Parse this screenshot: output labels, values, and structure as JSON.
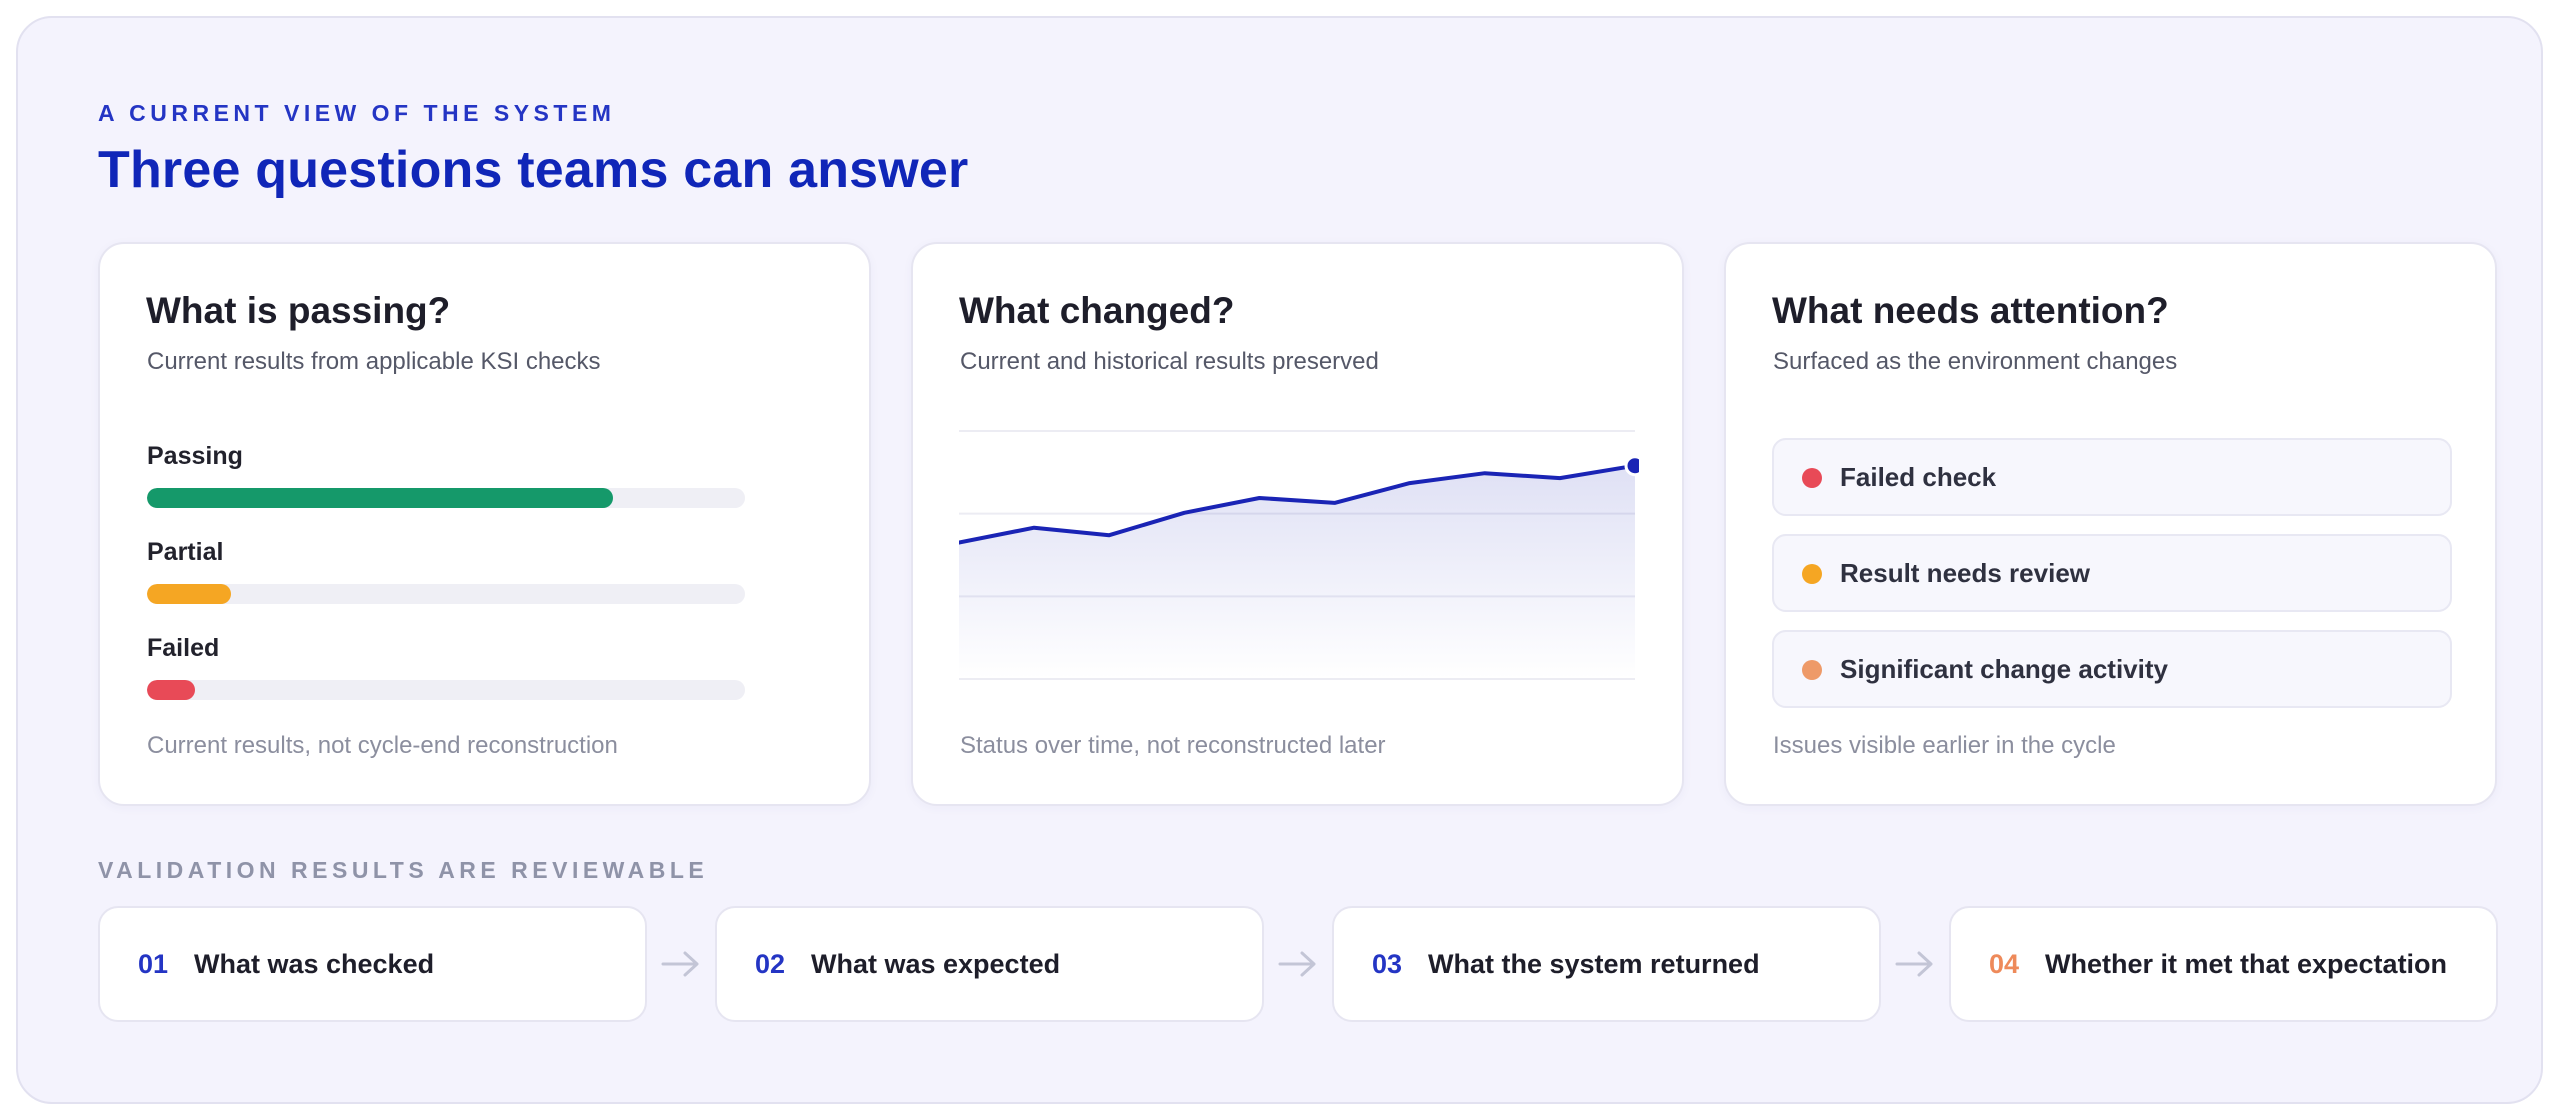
{
  "header": {
    "eyebrow": "A CURRENT VIEW OF THE SYSTEM",
    "title": "Three questions teams can answer"
  },
  "colors": {
    "accent": "#1026b8",
    "passing": "#15996a",
    "partial": "#f5a623",
    "failed": "#e84a57",
    "significant": "#ee9a68",
    "chart_line": "#1a24b5"
  },
  "cards": [
    {
      "title": "What is passing?",
      "subtitle": "Current results from applicable KSI checks",
      "footer": "Current results, not cycle-end reconstruction",
      "bars": [
        {
          "label": "Passing",
          "fraction": 0.78,
          "color": "#15996a"
        },
        {
          "label": "Partial",
          "fraction": 0.14,
          "color": "#f5a623"
        },
        {
          "label": "Failed",
          "fraction": 0.08,
          "color": "#e84a57"
        }
      ]
    },
    {
      "title": "What changed?",
      "subtitle": "Current and historical results preserved",
      "footer": "Status over time, not reconstructed later"
    },
    {
      "title": "What needs attention?",
      "subtitle": "Surfaced as the environment changes",
      "footer": "Issues visible earlier in the cycle",
      "items": [
        {
          "label": "Failed check",
          "color": "#e84a57",
          "icon": "red-status-dot"
        },
        {
          "label": "Result needs review",
          "color": "#f5a623",
          "icon": "amber-status-dot"
        },
        {
          "label": "Significant change activity",
          "color": "#ee9a68",
          "icon": "orange-status-dot"
        }
      ]
    }
  ],
  "chart_data": {
    "type": "area",
    "x": [
      0,
      1,
      2,
      3,
      4,
      5,
      6,
      7,
      8,
      9
    ],
    "values": [
      0.55,
      0.61,
      0.58,
      0.67,
      0.73,
      0.71,
      0.79,
      0.83,
      0.81,
      0.86
    ],
    "ylim": [
      0,
      1
    ],
    "grid": true,
    "title": "",
    "xlabel": "",
    "ylabel": ""
  },
  "validation": {
    "label": "VALIDATION RESULTS ARE REVIEWABLE",
    "steps": [
      {
        "num": "01",
        "text": "What was checked",
        "color": "#2435c4"
      },
      {
        "num": "02",
        "text": "What was expected",
        "color": "#2435c4"
      },
      {
        "num": "03",
        "text": "What the system returned",
        "color": "#2435c4"
      },
      {
        "num": "04",
        "text": "Whether it met that expectation",
        "color": "#ee8a5a"
      }
    ]
  }
}
